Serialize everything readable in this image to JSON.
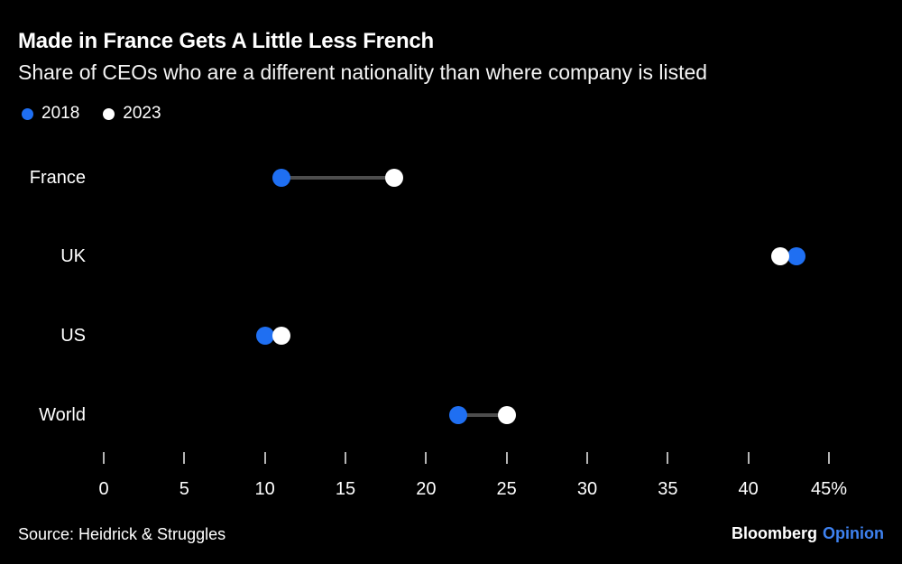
{
  "header": {
    "title": "Made in France Gets A Little Less French",
    "subtitle": "Share of CEOs who are a different nationality than where company is listed"
  },
  "legend": [
    {
      "label": "2018",
      "color": "#1f6ff2"
    },
    {
      "label": "2023",
      "color": "#ffffff"
    }
  ],
  "chart_data": {
    "type": "scatter",
    "subtype": "dumbbell-dot-plot",
    "categories": [
      "France",
      "UK",
      "US",
      "World"
    ],
    "series": [
      {
        "name": "2018",
        "color": "#1f6ff2",
        "values": [
          11,
          43,
          10,
          22
        ]
      },
      {
        "name": "2023",
        "color": "#ffffff",
        "values": [
          18,
          42,
          11,
          25
        ]
      }
    ],
    "title": "Made in France Gets A Little Less French",
    "xlabel": "",
    "ylabel": "",
    "xlim": [
      0,
      45
    ],
    "x_ticks": [
      0,
      5,
      10,
      15,
      20,
      25,
      30,
      35,
      40,
      45
    ],
    "x_tick_labels": [
      "0",
      "5",
      "10",
      "15",
      "20",
      "25",
      "30",
      "35",
      "40",
      "45%"
    ],
    "unit": "%",
    "grid": false,
    "legend_position": "top-left",
    "connector_color": "#4d4d4d"
  },
  "footer": {
    "source": "Source: Heidrick & Struggles",
    "logo": {
      "brand": "Bloomberg",
      "suffix": "Opinion",
      "suffix_color": "#3e82f1"
    }
  },
  "colors": {
    "background": "#000000",
    "text": "#ffffff",
    "accent_blue": "#1f6ff2",
    "tick": "#b5b5b5"
  }
}
